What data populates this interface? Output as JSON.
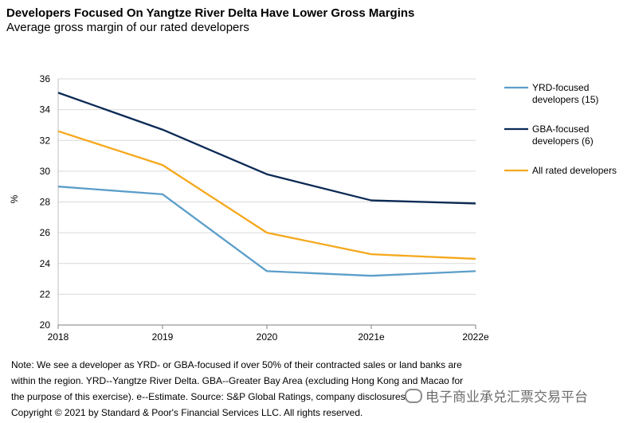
{
  "chart_data": {
    "type": "line",
    "title": "Developers Focused On Yangtze River Delta Have Lower Gross Margins",
    "subtitle": "Average gross margin of our rated developers",
    "ylabel": "%",
    "xlabel": "",
    "x": [
      "2018",
      "2019",
      "2020",
      "2021e",
      "2022e"
    ],
    "ylim": [
      20,
      36
    ],
    "yticks": [
      20,
      22,
      24,
      26,
      28,
      30,
      32,
      34,
      36
    ],
    "grid": true,
    "legend_position": "right",
    "series": [
      {
        "name": "YRD-focused developers (15)",
        "legend_lines": [
          "YRD-focused",
          "developers (15)"
        ],
        "color": "#5b9ec9",
        "values": [
          29.0,
          28.5,
          23.5,
          23.2,
          23.5
        ]
      },
      {
        "name": "GBA-focused developers (6)",
        "legend_lines": [
          "GBA-focused",
          "developers (6)"
        ],
        "color": "#0b2a55",
        "values": [
          35.1,
          32.7,
          29.8,
          28.1,
          27.9
        ]
      },
      {
        "name": "All rated developers",
        "legend_lines": [
          "All rated developers"
        ],
        "color": "#f5a81c",
        "values": [
          32.6,
          30.4,
          26.0,
          24.6,
          24.3
        ]
      }
    ]
  },
  "note": {
    "line1": "Note: We see a developer as YRD- or GBA-focused if over 50% of their contracted sales or land banks are",
    "line2": "within the region. YRD--Yangtze  River Delta. GBA--Greater Bay Area (excluding Hong Kong and Macao for",
    "line3": "the purpose of this exercise). e--Estimate. Source: S&P Global Ratings, company disclosures.",
    "copyright": "Copyright © 2021 by Standard & Poor's Financial Services LLC. All rights reserved."
  },
  "watermark": {
    "text": "电子商业承兑汇票交易平台",
    "icon": "wechat-icon"
  }
}
